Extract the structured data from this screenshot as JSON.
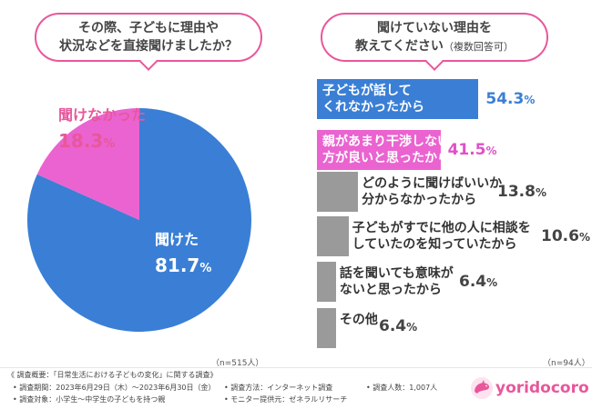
{
  "question_left": [
    "その際、子どもに理由や",
    "状況などを直接聞けましたか？"
  ],
  "question_right": [
    "聞けていない理由を",
    "教えてください",
    "（複数回答可）"
  ],
  "chart_data": [
    {
      "type": "pie",
      "title": "その際、子どもに理由や状況などを直接聞けましたか？",
      "slices": [
        {
          "label": "聞けた",
          "value": 81.7,
          "display": "81.7",
          "color": "#3a7fd5"
        },
        {
          "label": "聞けなかった",
          "value": 18.3,
          "display": "18.3",
          "color": "#ea63d0"
        }
      ],
      "unit": "%",
      "n_note": "（n=515人）"
    },
    {
      "type": "bar",
      "orientation": "horizontal",
      "title": "聞けていない理由を教えてください（複数回答可）",
      "categories": [
        "子どもが話してくれなかったから",
        "親があまり干渉しない方が良いと思ったから",
        "どのように聞けばいいか分からなかったから",
        "子どもがすでに他の人に相談をしていたのを知っていたから",
        "話を聞いても意味がないと思ったから",
        "その他"
      ],
      "values": [
        54.3,
        41.5,
        13.8,
        10.6,
        6.4,
        6.4
      ],
      "unit": "%",
      "xlim": [
        0,
        60
      ],
      "n_note": "（n=94人）"
    }
  ],
  "bar_labels": [
    {
      "lines": [
        "子どもが話して",
        "くれなかったから"
      ],
      "value": "54.3",
      "color": "#3a7fd5",
      "style": "blue"
    },
    {
      "lines": [
        "親があまり干渉しない",
        "方が良いと思ったから"
      ],
      "value": "41.5",
      "color": "#ea63d0",
      "style": "pink"
    },
    {
      "lines": [
        "どのように聞けばいいか",
        "分からなかったから"
      ],
      "value": "13.8",
      "color": "#9a9a9a",
      "style": "gray"
    },
    {
      "lines": [
        "子どもがすでに他の人に相談を",
        "していたのを知っていたから"
      ],
      "value": "10.6",
      "color": "#9a9a9a",
      "style": "gray"
    },
    {
      "lines": [
        "話を聞いても意味が",
        "ないと思ったから"
      ],
      "value": "6.4",
      "color": "#9a9a9a",
      "style": "gray"
    },
    {
      "lines": [
        "その他"
      ],
      "value": "6.4",
      "color": "#9a9a9a",
      "style": "gray"
    }
  ],
  "pct_sign": "%",
  "footer": {
    "title": "《 調査概要：「日常生活における子どもの変化」に関する調査》",
    "period": "• 調査期間：2023年6月29日（木）～2023年6月30日（金）",
    "method": "• 調査方法：インターネット調査",
    "count": "• 調査人数：1,007人",
    "target": "• 調査対象：小学生～中学生の子どもを持つ親",
    "provider": "• モニター提供元：ゼネラルリサーチ"
  },
  "logo": {
    "text": "yoridocoro",
    "icon": "dolphin-icon",
    "color": "#e8579b"
  }
}
